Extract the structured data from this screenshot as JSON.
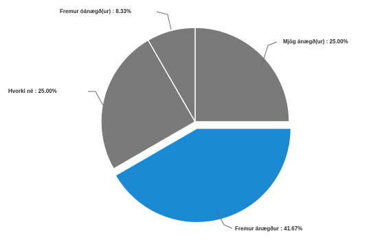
{
  "chart_data": {
    "type": "pie",
    "title": "",
    "start_angle_deg": 90,
    "direction": "clockwise",
    "slices": [
      {
        "label": "Mjög ánægð(ur)",
        "value": 25.0,
        "display": "Mjög ánægð(ur)  : 25.00%",
        "color": "#7a7a7a",
        "exploded": false
      },
      {
        "label": "Fremur ánægð(ur)",
        "value": 41.67,
        "display": "Fremur ánægður  : 41.67%",
        "color": "#1a8ad4",
        "exploded": true
      },
      {
        "label": "Hvorki né",
        "value": 25.0,
        "display": "Hvorki né  : 25.00%",
        "color": "#7a7a7a",
        "exploded": false
      },
      {
        "label": "Fremur óánægð(ur)",
        "value": 8.33,
        "display": "Fremur óánægð(ur)  : 8.33%",
        "color": "#7a7a7a",
        "exploded": false
      }
    ]
  }
}
